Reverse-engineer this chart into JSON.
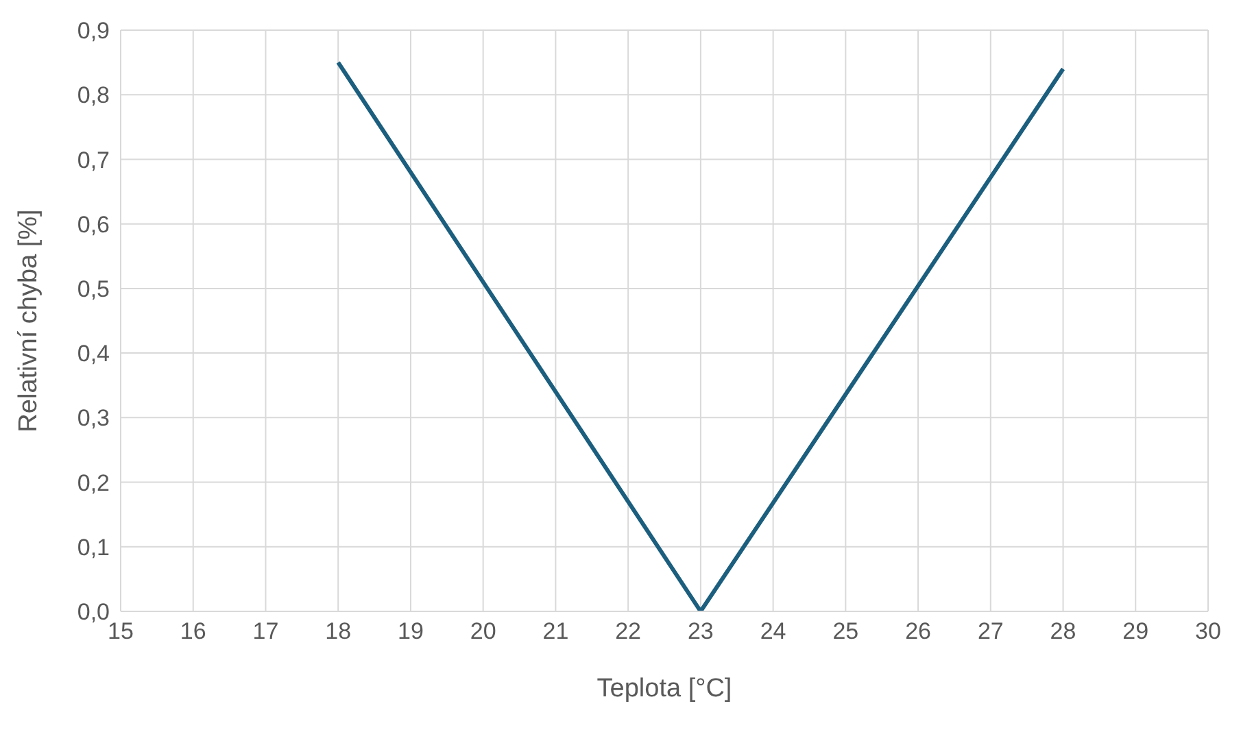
{
  "chart_data": {
    "type": "line",
    "xlabel": "Teplota [°C]",
    "ylabel": "Relativní chyba [%]",
    "x": [
      18,
      23,
      28
    ],
    "series": [
      {
        "color": "#1b5e7e",
        "values": [
          0.85,
          0,
          0.84
        ]
      }
    ],
    "xlim": [
      15,
      30
    ],
    "xticks": [
      15,
      16,
      17,
      18,
      19,
      20,
      21,
      22,
      23,
      24,
      25,
      26,
      27,
      28,
      29,
      30
    ],
    "ylim": [
      0,
      0.9
    ],
    "yticks": [
      {
        "value": 0,
        "label": "0,0"
      },
      {
        "value": 0.1,
        "label": "0,1"
      },
      {
        "value": 0.2,
        "label": "0,2"
      },
      {
        "value": 0.3,
        "label": "0,3"
      },
      {
        "value": 0.4,
        "label": "0,4"
      },
      {
        "value": 0.5,
        "label": "0,5"
      },
      {
        "value": 0.6,
        "label": "0,6"
      },
      {
        "value": 0.7,
        "label": "0,7"
      },
      {
        "value": 0.8,
        "label": "0,8"
      },
      {
        "value": 0.9,
        "label": "0,9"
      }
    ],
    "grid": true,
    "marker": "none",
    "line_style": "solid",
    "legend": false
  }
}
